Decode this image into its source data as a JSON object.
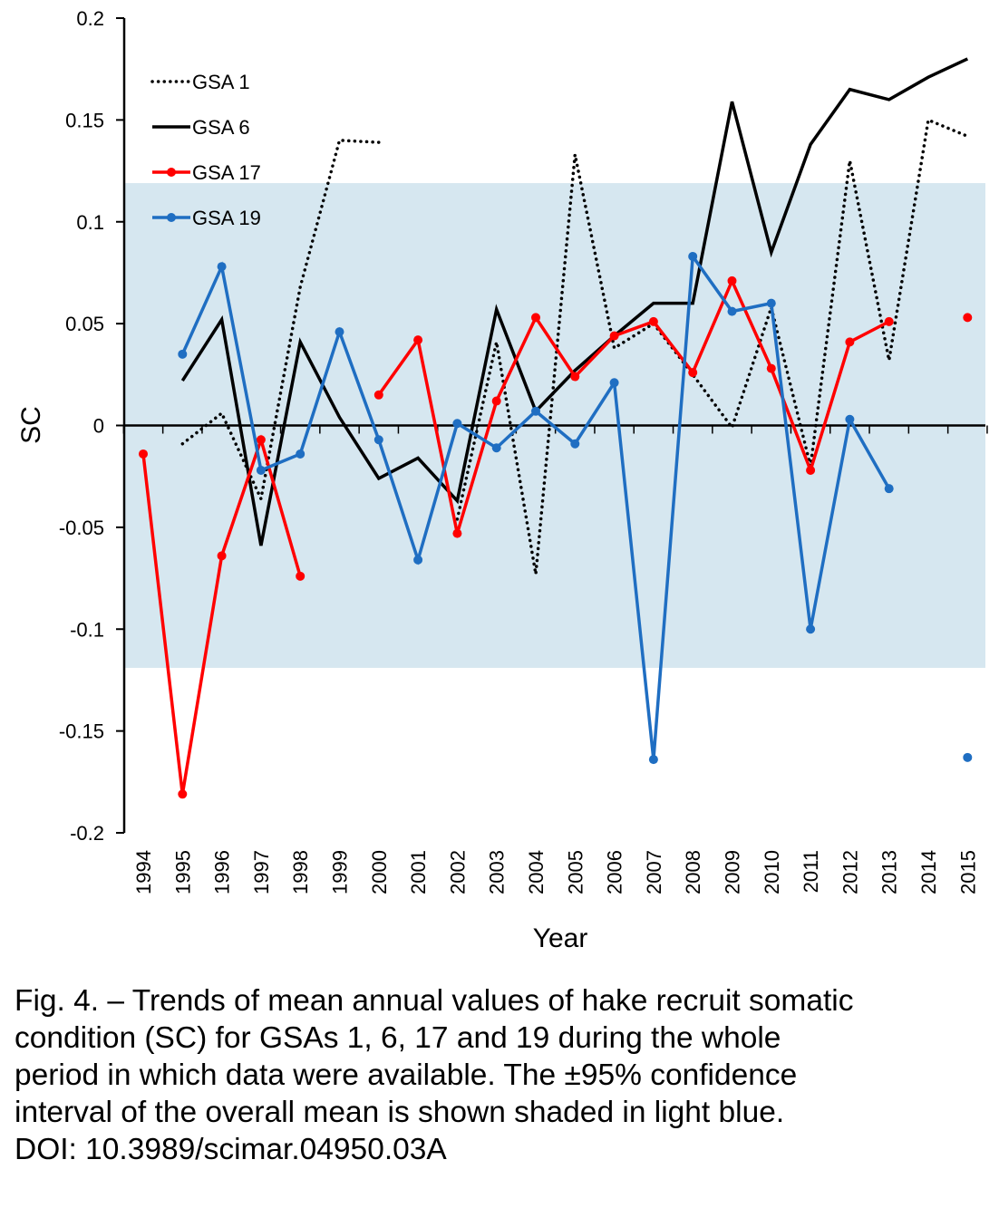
{
  "chart_data": {
    "type": "line",
    "xlabel": "Year",
    "ylabel": "SC",
    "categories": [
      "1994",
      "1995",
      "1996",
      "1997",
      "1998",
      "1999",
      "2000",
      "2001",
      "2002",
      "2003",
      "2004",
      "2005",
      "2006",
      "2007",
      "2008",
      "2009",
      "2010",
      "2011",
      "2012",
      "2013",
      "2014",
      "2015"
    ],
    "ylim": [
      -0.2,
      0.2
    ],
    "y_ticks": [
      "0.2",
      "0.15",
      "0.1",
      "0.05",
      "0",
      "-0.05",
      "-0.1",
      "-0.15",
      "-0.2"
    ],
    "confidence_band": {
      "low": -0.119,
      "high": 0.119,
      "color": "#d6e7f0"
    },
    "legend_position": "top-left",
    "series": [
      {
        "name": "GSA 1",
        "color": "#000000",
        "style": "dotted",
        "markers": false,
        "values": [
          null,
          -0.009,
          0.006,
          -0.036,
          0.068,
          0.14,
          0.139,
          null,
          -0.046,
          0.041,
          -0.073,
          0.133,
          0.038,
          0.05,
          0.025,
          -0.001,
          0.058,
          -0.02,
          0.13,
          0.032,
          0.15,
          0.142
        ]
      },
      {
        "name": "GSA 6",
        "color": "#000000",
        "style": "solid",
        "markers": false,
        "values": [
          null,
          0.022,
          0.052,
          -0.059,
          0.041,
          0.004,
          -0.026,
          -0.016,
          -0.037,
          0.057,
          0.007,
          0.027,
          0.044,
          0.06,
          0.06,
          0.159,
          0.085,
          0.138,
          0.165,
          0.16,
          0.171,
          0.18
        ]
      },
      {
        "name": "GSA 17",
        "color": "#ff0000",
        "style": "solid",
        "markers": true,
        "values": [
          -0.014,
          -0.181,
          -0.064,
          -0.007,
          -0.074,
          null,
          0.015,
          0.042,
          -0.053,
          0.012,
          0.053,
          0.024,
          0.044,
          0.051,
          0.026,
          0.071,
          0.028,
          -0.022,
          0.041,
          0.051,
          null,
          0.053
        ]
      },
      {
        "name": "GSA 19",
        "color": "#1f6ec2",
        "style": "solid",
        "markers": true,
        "values": [
          null,
          0.035,
          0.078,
          -0.022,
          -0.014,
          0.046,
          -0.007,
          -0.066,
          0.001,
          -0.011,
          0.007,
          -0.009,
          0.021,
          -0.164,
          0.083,
          0.056,
          0.06,
          -0.1,
          0.003,
          -0.031,
          null,
          -0.163
        ]
      }
    ]
  },
  "caption": {
    "line1": "Fig. 4. – Trends of mean annual values of hake recruit somatic",
    "line2": "condition (SC) for GSAs 1, 6, 17 and 19 during the whole",
    "line3": "period in which data were available. The ±95% confidence",
    "line4": "interval of the overall mean is shown shaded in light blue.",
    "line5": "DOI: 10.3989/scimar.04950.03A"
  }
}
